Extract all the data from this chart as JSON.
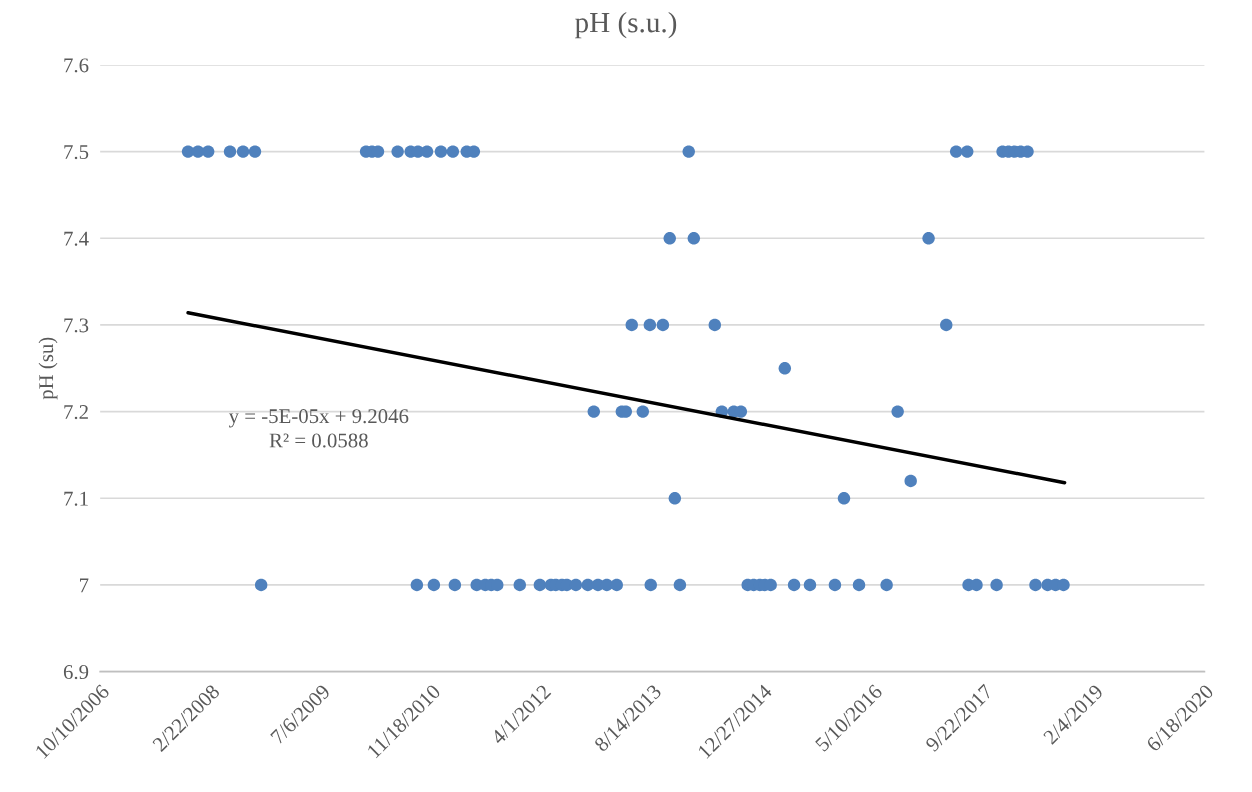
{
  "chart_data": {
    "type": "scatter",
    "title": "pH (s.u.)",
    "ylabel": "pH (su)",
    "xlim": [
      "2006-10-10",
      "2020-06-18"
    ],
    "xticks": [
      {
        "value": "2006-10-10",
        "label": "10/10/2006"
      },
      {
        "value": "2008-02-22",
        "label": "2/22/2008"
      },
      {
        "value": "2009-07-06",
        "label": "7/6/2009"
      },
      {
        "value": "2010-11-18",
        "label": "11/18/2010"
      },
      {
        "value": "2012-04-01",
        "label": "4/1/2012"
      },
      {
        "value": "2013-08-14",
        "label": "8/14/2013"
      },
      {
        "value": "2014-12-27",
        "label": "12/27/2014"
      },
      {
        "value": "2016-05-10",
        "label": "5/10/2016"
      },
      {
        "value": "2017-09-22",
        "label": "9/22/2017"
      },
      {
        "value": "2019-02-04",
        "label": "2/4/2019"
      },
      {
        "value": "2020-06-18",
        "label": "6/18/2020"
      }
    ],
    "ylim": [
      6.9,
      7.6
    ],
    "yticks": [
      6.9,
      7,
      7.1,
      7.2,
      7.3,
      7.4,
      7.5,
      7.6
    ],
    "grid": "y",
    "marker": "circle",
    "series": [
      {
        "type": "scatter",
        "color": "#4f81bd",
        "x": [
          "2007-11-12",
          "2007-12-27",
          "2008-02-11",
          "2008-05-20",
          "2008-07-18",
          "2008-09-10",
          "2010-01-26",
          "2010-02-22",
          "2010-03-21",
          "2010-06-18",
          "2010-08-16",
          "2010-09-18",
          "2010-10-29",
          "2010-12-31",
          "2011-02-23",
          "2011-04-27",
          "2011-05-29",
          "2014-01-26",
          "2017-05-21",
          "2017-07-10",
          "2017-12-17",
          "2018-01-13",
          "2018-02-09",
          "2018-03-09",
          "2018-04-09",
          "2013-11-01",
          "2014-02-18",
          "2017-01-16",
          "2013-05-13",
          "2013-08-03",
          "2013-10-01",
          "2014-05-24",
          "2017-04-06",
          "2015-04-06",
          "2012-11-22",
          "2013-03-29",
          "2013-04-16",
          "2013-07-02",
          "2014-06-25",
          "2014-08-18",
          "2014-09-19",
          "2016-08-29",
          "2013-11-24",
          "2015-12-30",
          "2016-10-27",
          "2008-10-08",
          "2010-09-13",
          "2010-11-29",
          "2011-03-04",
          "2011-06-11",
          "2011-07-20",
          "2011-08-16",
          "2011-09-12",
          "2011-12-23",
          "2012-03-23",
          "2012-05-12",
          "2012-06-03",
          "2012-07-01",
          "2012-07-23",
          "2012-09-02",
          "2012-10-26",
          "2012-12-11",
          "2013-01-20",
          "2013-03-06",
          "2013-08-07",
          "2013-12-17",
          "2014-10-20",
          "2014-11-16",
          "2014-12-14",
          "2015-01-05",
          "2015-02-01",
          "2015-05-18",
          "2015-07-29",
          "2015-11-19",
          "2016-03-07",
          "2016-07-10",
          "2017-07-16",
          "2017-08-21",
          "2017-11-20",
          "2018-05-15",
          "2018-07-09",
          "2018-08-14",
          "2018-09-19"
        ],
        "values": [
          7.5,
          7.5,
          7.5,
          7.5,
          7.5,
          7.5,
          7.5,
          7.5,
          7.5,
          7.5,
          7.5,
          7.5,
          7.5,
          7.5,
          7.5,
          7.5,
          7.5,
          7.5,
          7.5,
          7.5,
          7.5,
          7.5,
          7.5,
          7.5,
          7.5,
          7.4,
          7.4,
          7.4,
          7.3,
          7.3,
          7.3,
          7.3,
          7.3,
          7.25,
          7.2,
          7.2,
          7.2,
          7.2,
          7.2,
          7.2,
          7.2,
          7.2,
          7.1,
          7.1,
          7.12,
          7,
          7,
          7,
          7,
          7,
          7,
          7,
          7,
          7,
          7,
          7,
          7,
          7,
          7,
          7,
          7,
          7,
          7,
          7,
          7,
          7,
          7,
          7,
          7,
          7,
          7,
          7,
          7,
          7,
          7,
          7,
          7,
          7,
          7,
          7,
          7,
          7,
          7
        ]
      },
      {
        "type": "line",
        "marker": "none",
        "color": "#000000",
        "x": [
          "2007-11-12",
          "2018-09-24"
        ],
        "values": [
          7.314,
          7.118
        ]
      }
    ],
    "annotations": [
      "y = -5E-05x + 9.2046",
      "R² = 0.0588"
    ]
  }
}
